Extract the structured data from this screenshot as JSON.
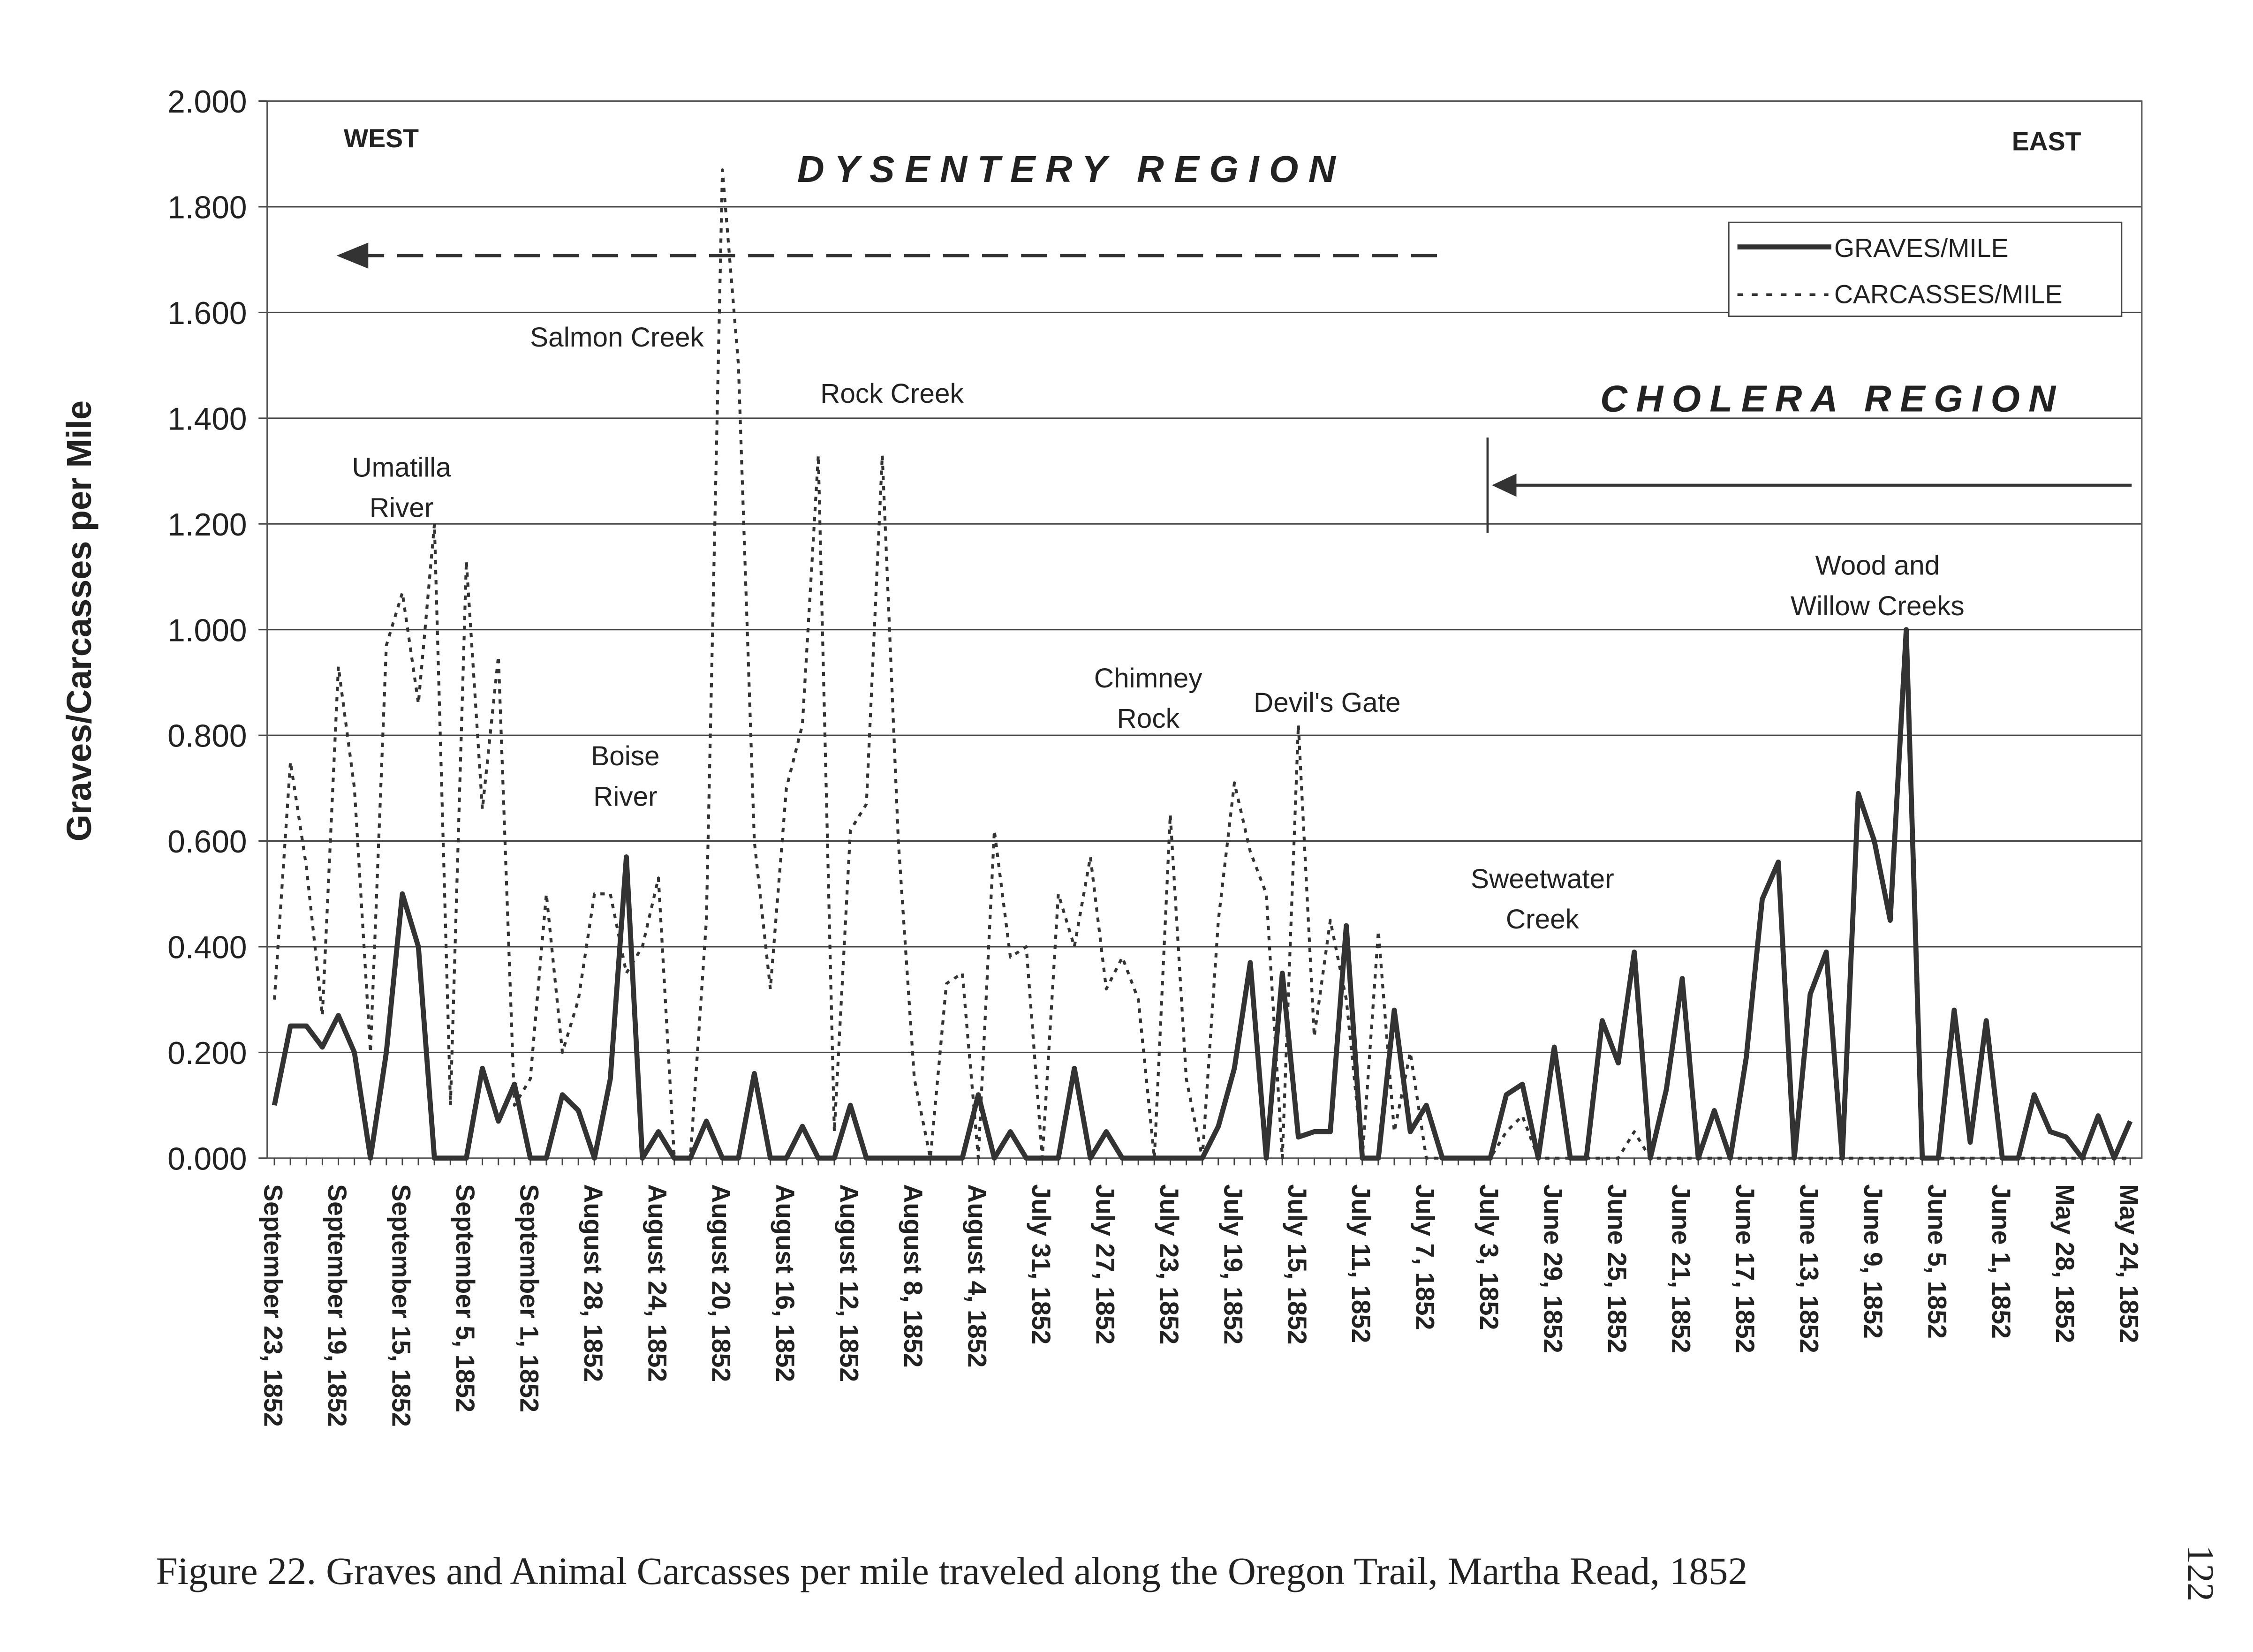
{
  "chart_data": {
    "type": "line",
    "title": "",
    "ylabel": "Graves/Carcasses per Mile",
    "xlabel": "",
    "ylim": [
      0,
      2.0
    ],
    "ytick_step": 0.2,
    "yticks": [
      "0.000",
      "0.200",
      "0.400",
      "0.600",
      "0.800",
      "1.000",
      "1.200",
      "1.400",
      "1.600",
      "1.800",
      "2.000"
    ],
    "grid": true,
    "legend_position": "top-right",
    "xtick_labels": [
      "September 23, 1852",
      "September 19, 1852",
      "September 15, 1852",
      "September 5, 1852",
      "September 1, 1852",
      "August 28, 1852",
      "August 24, 1852",
      "August 20, 1852",
      "August 16, 1852",
      "August 12, 1852",
      "August 8, 1852",
      "August 4, 1852",
      "July 31, 1852",
      "July 27, 1852",
      "July 23, 1852",
      "July 19, 1852",
      "July 15, 1852",
      "July 11, 1852",
      "July 7, 1852",
      "July 3, 1852",
      "June 29, 1852",
      "June 25, 1852",
      "June 21, 1852",
      "June 17, 1852",
      "June 13, 1852",
      "June 9, 1852",
      "June 5, 1852",
      "June 1, 1852",
      "May 28, 1852",
      "May 24, 1852"
    ],
    "points_per_label": 4,
    "series": [
      {
        "name": "GRAVES/MILE",
        "style": "solid",
        "values": [
          0.1,
          0.25,
          0.25,
          0.21,
          0.27,
          0.2,
          0,
          0.2,
          0.5,
          0.4,
          0,
          0,
          0,
          0.17,
          0.07,
          0.14,
          0,
          0,
          0.12,
          0.09,
          0,
          0.15,
          0.57,
          0,
          0.05,
          0,
          0,
          0.07,
          0,
          0,
          0.16,
          0,
          0,
          0.06,
          0,
          0,
          0.1,
          0,
          0,
          0,
          0,
          0,
          0,
          0,
          0.12,
          0,
          0.05,
          0,
          0,
          0,
          0.17,
          0,
          0.05,
          0,
          0,
          0,
          0,
          0,
          0,
          0.06,
          0.17,
          0.37,
          0,
          0.35,
          0.04,
          0.05,
          0.05,
          0.44,
          0,
          0,
          0.28,
          0.05,
          0.1,
          0,
          0,
          0,
          0,
          0.12,
          0.14,
          0,
          0.21,
          0,
          0,
          0.26,
          0.18,
          0.39,
          0,
          0.13,
          0.34,
          0,
          0.09,
          0,
          0.19,
          0.49,
          0.56,
          0,
          0.31,
          0.39,
          0,
          0.69,
          0.6,
          0.45,
          1.0,
          0,
          0,
          0.28,
          0.03,
          0.26,
          0,
          0,
          0.12,
          0.05,
          0.04,
          0,
          0.08,
          0,
          0.07
        ]
      },
      {
        "name": "CARCASSES/MILE",
        "style": "dotted",
        "values": [
          0.3,
          0.75,
          0.55,
          0.27,
          0.93,
          0.7,
          0.2,
          0.97,
          1.07,
          0.86,
          1.2,
          0.1,
          1.13,
          0.66,
          0.95,
          0.1,
          0.15,
          0.5,
          0.2,
          0.3,
          0.5,
          0.5,
          0.35,
          0.4,
          0.53,
          0,
          0,
          0.45,
          1.87,
          1.5,
          0.6,
          0.32,
          0.7,
          0.82,
          1.33,
          0.05,
          0.62,
          0.67,
          1.33,
          0.6,
          0.15,
          0,
          0.33,
          0.35,
          0,
          0.62,
          0.38,
          0.4,
          0,
          0.5,
          0.4,
          0.57,
          0.32,
          0.38,
          0.3,
          0,
          0.65,
          0.15,
          0,
          0.45,
          0.71,
          0.58,
          0.5,
          0,
          0.82,
          0.23,
          0.45,
          0.3,
          0,
          0.43,
          0.05,
          0.2,
          0,
          0,
          0,
          0,
          0,
          0.05,
          0.08,
          0,
          0,
          0,
          0,
          0,
          0,
          0.05,
          0,
          0,
          0,
          0,
          0,
          0,
          0,
          0,
          0,
          0,
          0,
          0,
          0,
          0,
          0,
          0,
          0,
          0,
          0,
          0,
          0,
          0,
          0,
          0,
          0,
          0,
          0,
          0,
          0,
          0,
          0
        ]
      }
    ],
    "annotations": {
      "west": "WEST",
      "east": "EAST",
      "dysentery": "DYSENTERY REGION",
      "cholera": "CHOLERA REGION",
      "salmon_creek": "Salmon Creek",
      "rock_creek": "Rock Creek",
      "umatilla_1": "Umatilla",
      "umatilla_2": "River",
      "boise_1": "Boise",
      "boise_2": "River",
      "chimney_1": "Chimney",
      "chimney_2": "Rock",
      "devils_gate": "Devil's Gate",
      "sweetwater_1": "Sweetwater",
      "sweetwater_2": "Creek",
      "wood_1": "Wood and",
      "wood_2": "Willow Creeks"
    }
  },
  "caption": "Figure 22.  Graves and Animal Carcasses per mile traveled along the Oregon Trail, Martha Read, 1852",
  "page_number": "122"
}
